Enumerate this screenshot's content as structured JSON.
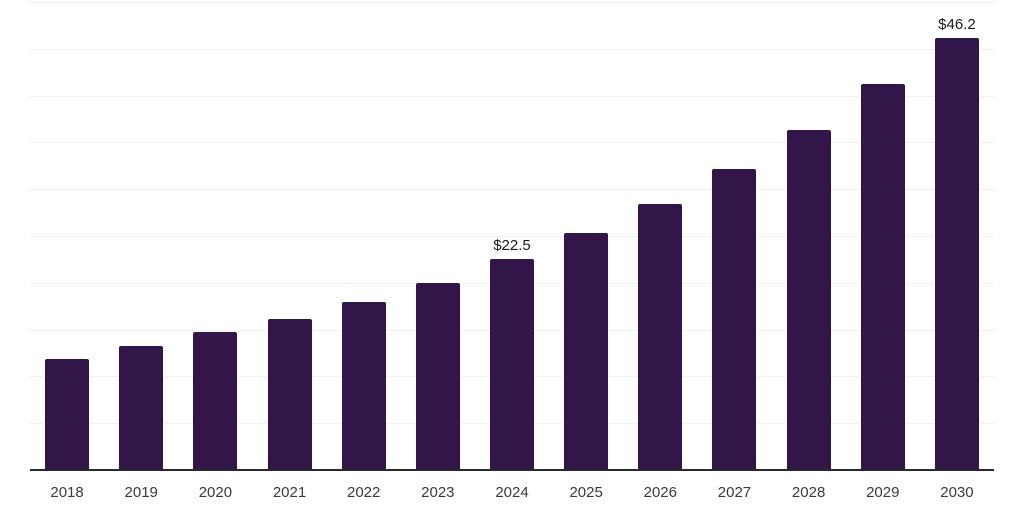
{
  "chart_data": {
    "type": "bar",
    "title": "",
    "xlabel": "",
    "ylabel": "",
    "categories": [
      "2018",
      "2019",
      "2020",
      "2021",
      "2022",
      "2023",
      "2024",
      "2025",
      "2026",
      "2027",
      "2028",
      "2029",
      "2030"
    ],
    "values": [
      11.9,
      13.3,
      14.7,
      16.1,
      17.9,
      20.0,
      22.5,
      25.3,
      28.4,
      32.2,
      36.3,
      41.2,
      46.2
    ],
    "data_labels": [
      {
        "category": "2024",
        "text": "$22.5"
      },
      {
        "category": "2030",
        "text": "$46.2"
      }
    ],
    "ylim": [
      0,
      50
    ],
    "gridline_step": 5,
    "grid": "horizontal",
    "y_axis_labels_visible": false,
    "legend_position": "none",
    "colors": {
      "bar": "#32164a",
      "gridline": "#f0f0f0",
      "axis_line": "#2a2a2a",
      "tick_label": "#3a3a3a",
      "data_label": "#1a1a1a",
      "background": "#ffffff"
    }
  }
}
